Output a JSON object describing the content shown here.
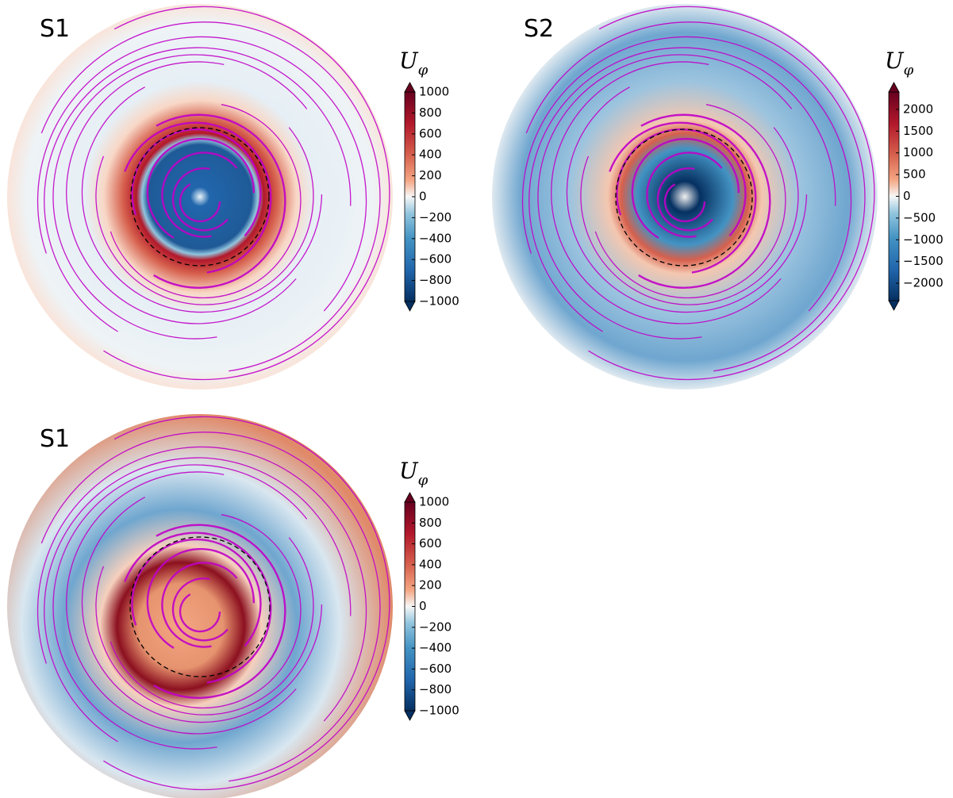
{
  "chart_data": [
    {
      "type": "disk-map",
      "title": "S1",
      "colorbar_symbol": "U",
      "colorbar_subscript": "φ",
      "ylim": [
        -1000,
        1000
      ],
      "yticks": [
        1000,
        800,
        600,
        400,
        200,
        0,
        {
          "value": -200,
          "label": "−200"
        },
        {
          "value": -400,
          "label": "−400"
        },
        {
          "value": -600,
          "label": "−600"
        },
        {
          "value": -800,
          "label": "−800"
        },
        {
          "value": -1000,
          "label": "−1000"
        }
      ]
    },
    {
      "type": "disk-map",
      "title": "S2",
      "colorbar_symbol": "U",
      "colorbar_subscript": "φ",
      "ylim": [
        -2400,
        2400
      ],
      "yticks": [
        2000,
        1500,
        1000,
        500,
        0,
        {
          "value": -500,
          "label": "−500"
        },
        {
          "value": -1000,
          "label": "−1000"
        },
        {
          "value": -1500,
          "label": "−1500"
        },
        {
          "value": -2000,
          "label": "−2000"
        }
      ]
    },
    {
      "type": "disk-map",
      "title": "S1",
      "colorbar_symbol": "U",
      "colorbar_subscript": "φ",
      "ylim": [
        -1000,
        1000
      ],
      "yticks": [
        1000,
        800,
        600,
        400,
        200,
        0,
        {
          "value": -200,
          "label": "−200"
        },
        {
          "value": -400,
          "label": "−400"
        },
        {
          "value": -600,
          "label": "−600"
        },
        {
          "value": -800,
          "label": "−800"
        },
        {
          "value": -1000,
          "label": "−1000"
        }
      ]
    }
  ]
}
